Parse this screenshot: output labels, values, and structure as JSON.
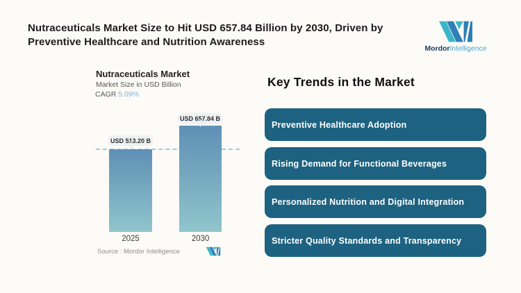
{
  "header": {
    "title": "Nutraceuticals Market Size to Hit USD 657.84 Billion by 2030, Driven by Preventive Healthcare and Nutrition Awareness"
  },
  "brand": {
    "bold": "Mordor",
    "light": "Intelligence"
  },
  "chart": {
    "title": "Nutraceuticals Market",
    "subtitle": "Market Size in USD Billion",
    "cagr_label": "CAGR",
    "cagr_value": "5.09%",
    "source": "Source :  Mordor Intelligence"
  },
  "chart_data": {
    "type": "bar",
    "title": "Nutraceuticals Market",
    "ylabel": "Market Size in USD Billion",
    "cagr": "5.09%",
    "categories": [
      "2025",
      "2030"
    ],
    "values": [
      513.2,
      657.84
    ],
    "value_labels": [
      "USD 513.20 B",
      "USD 657.84 B"
    ],
    "ylim": [
      0,
      700
    ],
    "reference_line_at": 513.2,
    "grid": false,
    "legend": "none",
    "bar_gradient_top": "#5f90b6",
    "bar_gradient_bottom": "#90c6cc",
    "reference_line_color": "#aac8e2"
  },
  "trends": {
    "heading": "Key Trends in the Market",
    "bar_color": "#1d6280",
    "items": [
      {
        "label": "Preventive Healthcare Adoption"
      },
      {
        "label": "Rising Demand for Functional Beverages"
      },
      {
        "label": "Personalized Nutrition and Digital Integration"
      },
      {
        "label": "Stricter Quality Standards and Transparency"
      }
    ]
  },
  "colors": {
    "background": "#fcfbf7",
    "title_text": "#1c1c1c",
    "trend_bar": "#1d6280",
    "cagr_accent": "#7db3d8",
    "logo_teal": "#3bb6c9",
    "logo_blue": "#2e7fb6"
  }
}
